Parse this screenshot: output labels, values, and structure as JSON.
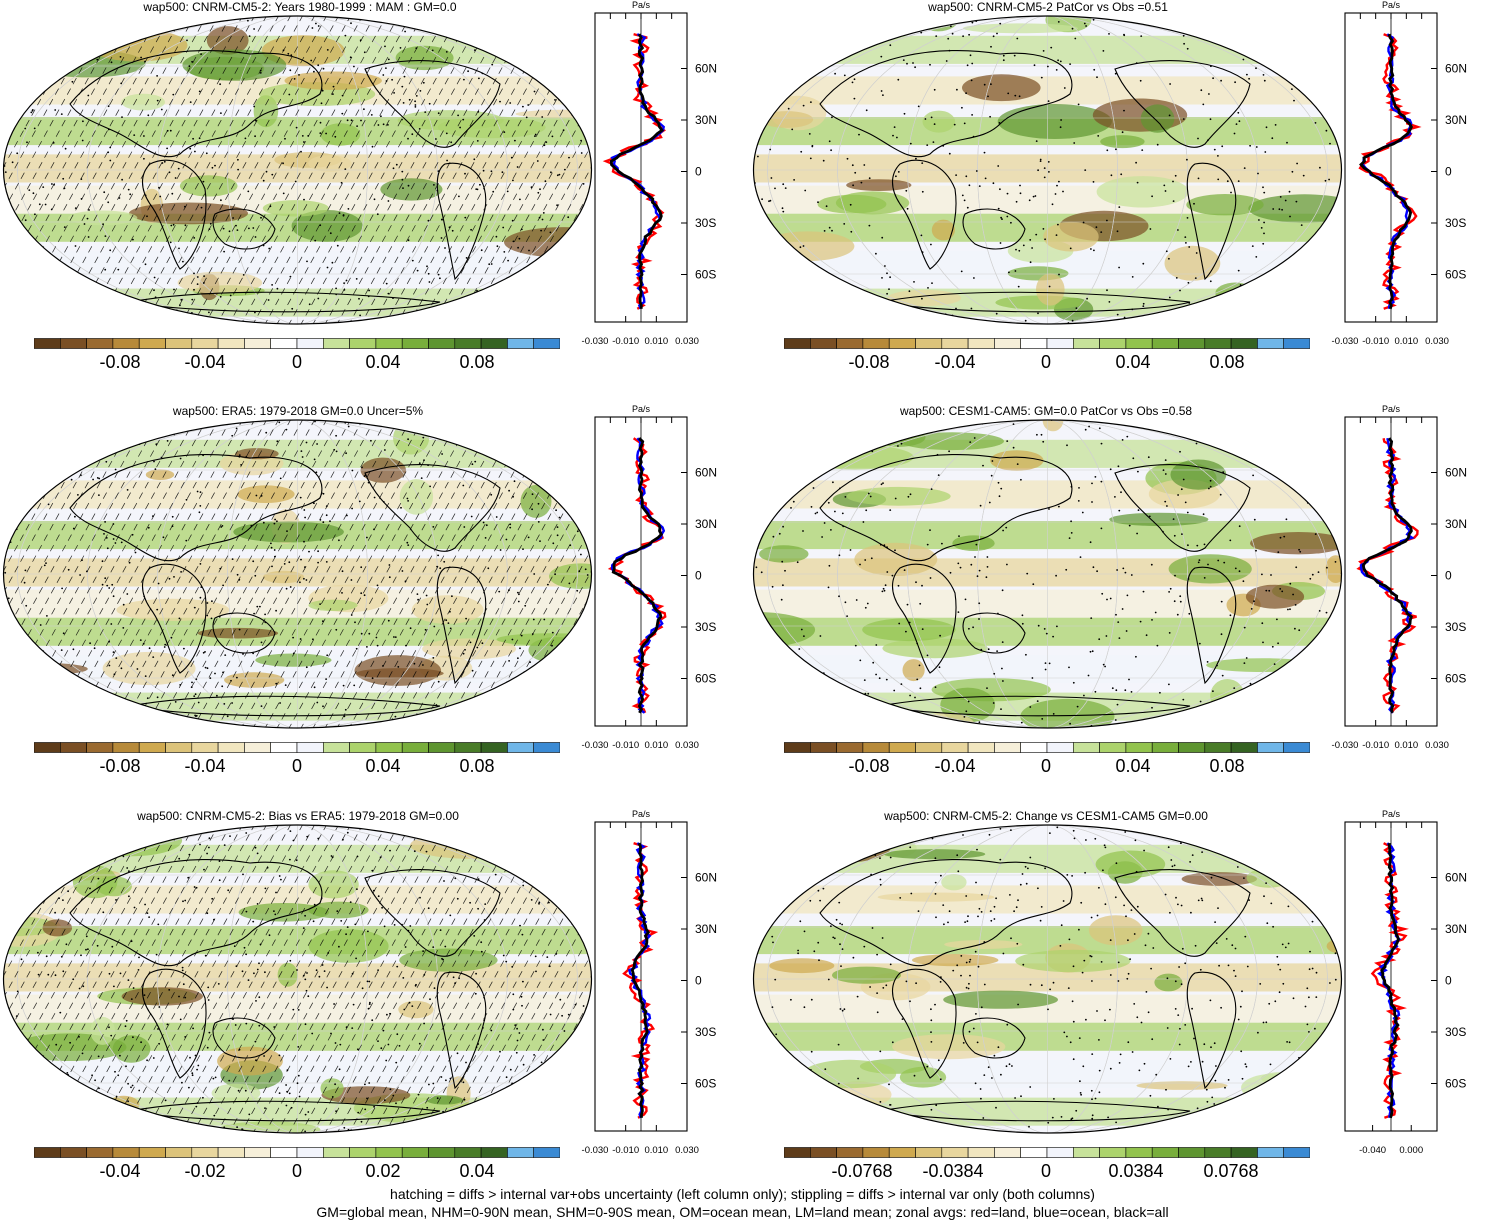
{
  "colors": {
    "palette": [
      "#5e3c1a",
      "#7a4f24",
      "#9a6a30",
      "#b78a3a",
      "#cfa94f",
      "#dcc37a",
      "#e8d69e",
      "#f1e6bf",
      "#f6efd9",
      "#ffffff",
      "#f2f4fb",
      "#c7e29a",
      "#acd36c",
      "#92c34d",
      "#78ae3b",
      "#5e9530",
      "#497c28",
      "#356322",
      "#6fb6e8",
      "#3a8ad4"
    ],
    "land_line": "#000000",
    "zonal_land": "#ff0000",
    "zonal_ocean": "#0000ff",
    "zonal_all": "#000000"
  },
  "panels": [
    {
      "title": "wap500: CNRM-CM5-2: Years 1980-1999 : MAM : GM=0.0",
      "colorbar_labels": [
        "-0.08",
        "-0.04",
        "0",
        "0.04",
        "0.08"
      ],
      "zonal_unit": "Pa/s",
      "zonal_lat_labels": [
        "60N",
        "30N",
        "0",
        "30S",
        "60S"
      ],
      "zonal_x_labels": [
        "-0.030",
        "-0.010",
        "0.010",
        "0.030"
      ],
      "hatching": true
    },
    {
      "title": "wap500: CNRM-CM5-2 PatCor vs Obs =0.51",
      "colorbar_labels": [
        "-0.08",
        "-0.04",
        "0",
        "0.04",
        "0.08"
      ],
      "zonal_unit": "Pa/s",
      "zonal_lat_labels": [
        "60N",
        "30N",
        "0",
        "30S",
        "60S"
      ],
      "zonal_x_labels": [
        "-0.030",
        "-0.010",
        "0.010",
        "0.030"
      ],
      "hatching": false
    },
    {
      "title": "wap500: ERA5: 1979-2018 GM=0.0 Uncer=5%",
      "colorbar_labels": [
        "-0.08",
        "-0.04",
        "0",
        "0.04",
        "0.08"
      ],
      "zonal_unit": "Pa/s",
      "zonal_lat_labels": [
        "60N",
        "30N",
        "0",
        "30S",
        "60S"
      ],
      "zonal_x_labels": [
        "-0.030",
        "-0.010",
        "0.010",
        "0.030"
      ],
      "hatching": true
    },
    {
      "title": "wap500: CESM1-CAM5: GM=0.0 PatCor vs Obs =0.58",
      "colorbar_labels": [
        "-0.08",
        "-0.04",
        "0",
        "0.04",
        "0.08"
      ],
      "zonal_unit": "Pa/s",
      "zonal_lat_labels": [
        "60N",
        "30N",
        "0",
        "30S",
        "60S"
      ],
      "zonal_x_labels": [
        "-0.030",
        "-0.010",
        "0.010",
        "0.030"
      ],
      "hatching": false
    },
    {
      "title": "wap500: CNRM-CM5-2: Bias vs ERA5: 1979-2018 GM=0.00",
      "colorbar_labels": [
        "-0.04",
        "-0.02",
        "0",
        "0.02",
        "0.04"
      ],
      "zonal_unit": "Pa/s",
      "zonal_lat_labels": [
        "60N",
        "30N",
        "0",
        "30S",
        "60S"
      ],
      "zonal_x_labels": [
        "-0.030",
        "-0.010",
        "0.010",
        "0.030"
      ],
      "hatching": true
    },
    {
      "title": "wap500: CNRM-CM5-2: Change vs CESM1-CAM5 GM=0.00",
      "colorbar_labels": [
        "-0.0768",
        "-0.0384",
        "0",
        "0.0384",
        "0.0768"
      ],
      "zonal_unit": "Pa/s",
      "zonal_lat_labels": [
        "60N",
        "30N",
        "0",
        "30S",
        "60S"
      ],
      "zonal_x_labels": [
        "-0.040",
        "0.000"
      ],
      "hatching": false
    }
  ],
  "footer": {
    "line1": "hatching = diffs > internal var+obs uncertainty (left column only); stippling = diffs > internal var only (both columns)",
    "line2": "GM=global mean, NHM=0-90N mean, SHM=0-90S mean, OM=ocean mean, LM=land mean; zonal avgs: red=land, blue=ocean, black=all"
  }
}
